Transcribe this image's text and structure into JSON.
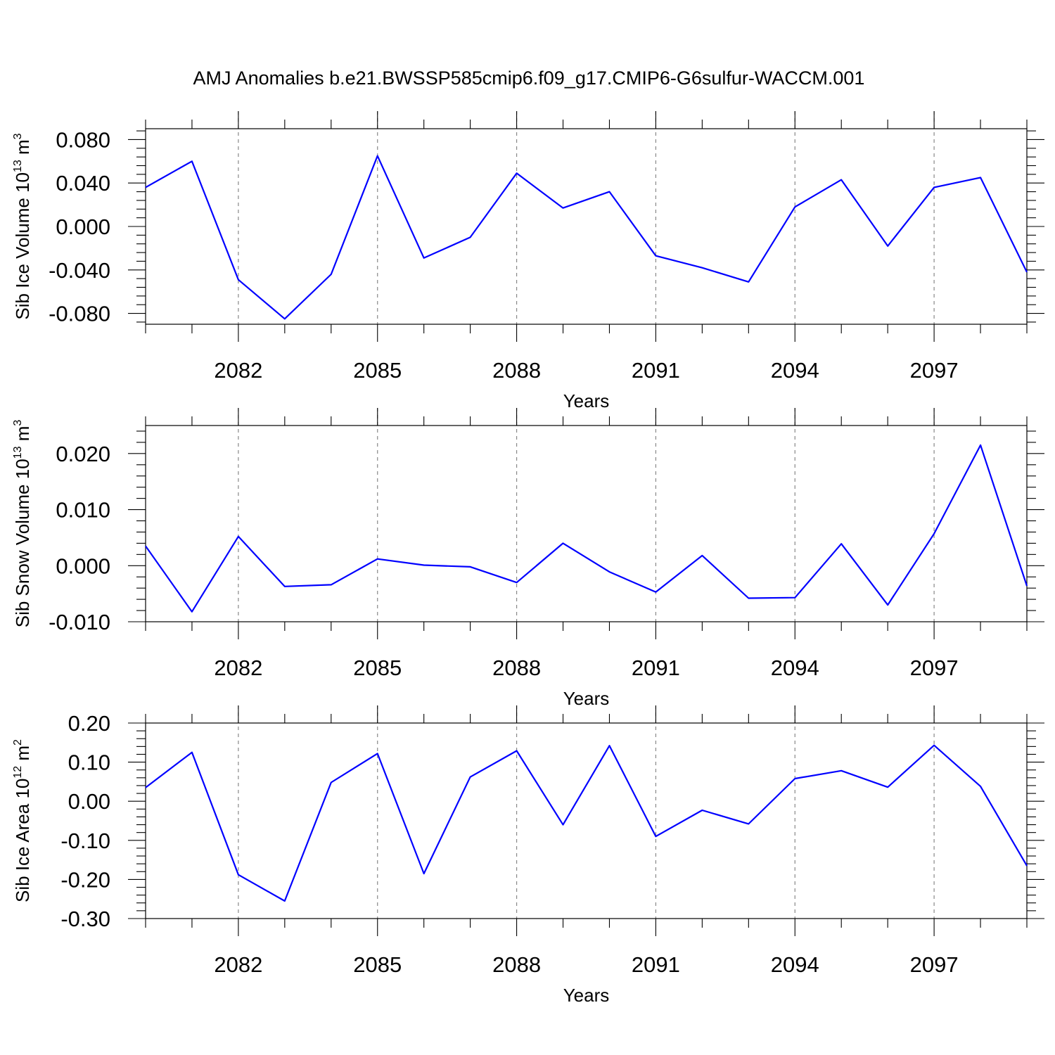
{
  "title": "AMJ Anomalies b.e21.BWSSP585cmip6.f09_g17.CMIP6-G6sulfur-WACCM.001",
  "line_color": "#0000ff",
  "chart_data": [
    {
      "type": "line",
      "ylabel": {
        "text": "Sib Ice Volume 10",
        "exp": "13",
        "unit": " m",
        "unit_exp": "3"
      },
      "xlabel": "Years",
      "xlim": [
        2080,
        2099
      ],
      "ylim": [
        -0.09,
        0.09
      ],
      "xticks": [
        2082,
        2085,
        2088,
        2091,
        2094,
        2097
      ],
      "xtick_labels": [
        "2082",
        "2085",
        "2088",
        "2091",
        "2094",
        "2097"
      ],
      "yticks": [
        0.08,
        0.04,
        0.0,
        -0.04,
        -0.08
      ],
      "ytick_labels": [
        "0.080",
        "0.040",
        "0.000",
        "-0.040",
        "-0.080"
      ],
      "x": [
        2080,
        2081,
        2082,
        2083,
        2084,
        2085,
        2086,
        2087,
        2088,
        2089,
        2090,
        2091,
        2092,
        2093,
        2094,
        2095,
        2096,
        2097,
        2098,
        2099
      ],
      "y": [
        0.036,
        0.06,
        -0.049,
        -0.085,
        -0.044,
        0.065,
        -0.029,
        -0.01,
        0.049,
        0.017,
        0.032,
        -0.027,
        -0.038,
        -0.051,
        0.018,
        0.043,
        -0.018,
        0.036,
        0.045,
        -0.042
      ]
    },
    {
      "type": "line",
      "ylabel": {
        "text": "Sib Snow Volume 10",
        "exp": "13",
        "unit": " m",
        "unit_exp": "3"
      },
      "xlabel": "Years",
      "xlim": [
        2080,
        2099
      ],
      "ylim": [
        -0.01,
        0.025
      ],
      "xticks": [
        2082,
        2085,
        2088,
        2091,
        2094,
        2097
      ],
      "xtick_labels": [
        "2082",
        "2085",
        "2088",
        "2091",
        "2094",
        "2097"
      ],
      "yticks": [
        0.02,
        0.01,
        0.0,
        -0.01
      ],
      "ytick_labels": [
        "0.020",
        "0.010",
        "0.000",
        "-0.010"
      ],
      "x": [
        2080,
        2081,
        2082,
        2083,
        2084,
        2085,
        2086,
        2087,
        2088,
        2089,
        2090,
        2091,
        2092,
        2093,
        2094,
        2095,
        2096,
        2097,
        2098,
        2099
      ],
      "y": [
        0.0035,
        -0.0082,
        0.0052,
        -0.0037,
        -0.0034,
        0.0012,
        0.0001,
        -0.0002,
        -0.003,
        0.004,
        -0.0011,
        -0.0047,
        0.0018,
        -0.0058,
        -0.0057,
        0.0039,
        -0.007,
        0.0057,
        0.0215,
        -0.0036
      ]
    },
    {
      "type": "line",
      "ylabel": {
        "text": "Sib Ice Area 10",
        "exp": "12",
        "unit": " m",
        "unit_exp": "2"
      },
      "xlabel": "Years",
      "xlim": [
        2080,
        2099
      ],
      "ylim": [
        -0.3,
        0.2
      ],
      "xticks": [
        2082,
        2085,
        2088,
        2091,
        2094,
        2097
      ],
      "xtick_labels": [
        "2082",
        "2085",
        "2088",
        "2091",
        "2094",
        "2097"
      ],
      "yticks": [
        0.2,
        0.1,
        0.0,
        -0.1,
        -0.2,
        -0.3
      ],
      "ytick_labels": [
        "0.20",
        "0.10",
        "0.00",
        "-0.10",
        "-0.20",
        "-0.30"
      ],
      "x": [
        2080,
        2081,
        2082,
        2083,
        2084,
        2085,
        2086,
        2087,
        2088,
        2089,
        2090,
        2091,
        2092,
        2093,
        2094,
        2095,
        2096,
        2097,
        2098,
        2099
      ],
      "y": [
        0.035,
        0.125,
        -0.188,
        -0.255,
        0.048,
        0.122,
        -0.185,
        0.062,
        0.129,
        -0.06,
        0.142,
        -0.09,
        -0.023,
        -0.058,
        0.058,
        0.078,
        0.036,
        0.143,
        0.038,
        -0.165
      ]
    }
  ]
}
